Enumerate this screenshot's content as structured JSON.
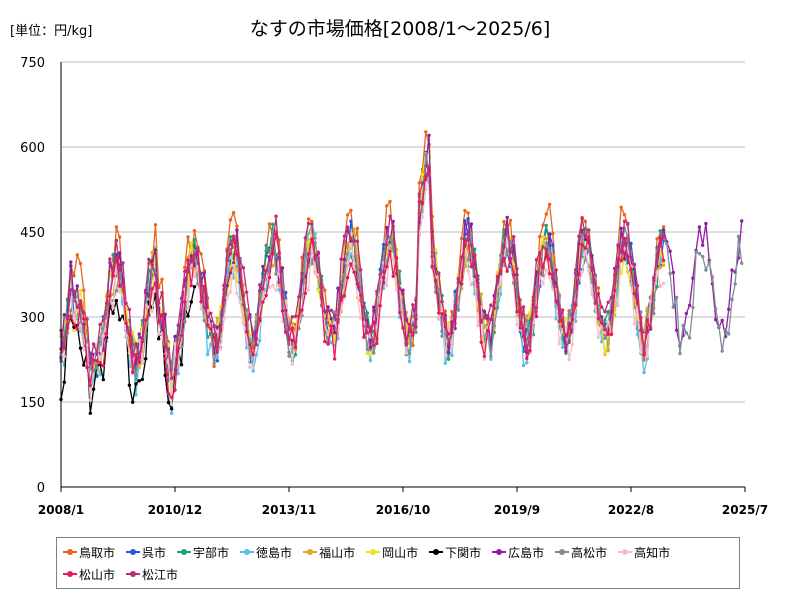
{
  "chart_data": {
    "type": "line",
    "title": "なすの市場価格[2008/1～2025/6]",
    "unit_label": "[単位：円/kg]",
    "ylim": [
      0,
      750
    ],
    "y_ticks": [
      0,
      150,
      300,
      450,
      600,
      750
    ],
    "x_range": [
      "2008/1",
      "2025/7"
    ],
    "x_ticks": [
      "2008/1",
      "2010/12",
      "2013/11",
      "2016/10",
      "2019/9",
      "2022/8",
      "2025/7"
    ],
    "grid": "horizontal",
    "legend_position": "bottom",
    "series": [
      {
        "name": "鳥取市",
        "color": "#e8651b",
        "end": "2023/6",
        "amp": 105,
        "base": 320,
        "lvl": 45,
        "sd": 3
      },
      {
        "name": "呉市",
        "color": "#1f5bd8",
        "end": "2023/6",
        "amp": 85,
        "base": 305,
        "lvl": 18,
        "sd": 7
      },
      {
        "name": "宇部市",
        "color": "#1ea36f",
        "end": "2023/6",
        "amp": 85,
        "base": 302,
        "lvl": 16,
        "sd": 11
      },
      {
        "name": "徳島市",
        "color": "#5bbde8",
        "end": "2023/6",
        "amp": 92,
        "base": 292,
        "lvl": 0,
        "sd": 13
      },
      {
        "name": "福山市",
        "color": "#e8a51b",
        "end": "2023/6",
        "amp": 82,
        "base": 304,
        "lvl": 14,
        "sd": 17
      },
      {
        "name": "岡山市",
        "color": "#f0e020",
        "end": "2023/6",
        "amp": 82,
        "base": 302,
        "lvl": 10,
        "sd": 19
      },
      {
        "name": "下関市",
        "color": "#000000",
        "end": "2011/6",
        "amp": 85,
        "base": 265,
        "lvl": -25,
        "sd": 23
      },
      {
        "name": "広島市",
        "color": "#8e1ea0",
        "end": "2025/6",
        "amp": 85,
        "base": 312,
        "lvl": 20,
        "sd": 29
      },
      {
        "name": "高松市",
        "color": "#7f8c99",
        "end": "2025/6",
        "amp": 80,
        "base": 298,
        "lvl": 4,
        "sd": 31
      },
      {
        "name": "高知市",
        "color": "#f2c0c8",
        "end": "2023/6",
        "amp": 70,
        "base": 285,
        "lvl": -5,
        "sd": 37
      },
      {
        "name": "松山市",
        "color": "#e8195a",
        "end": "2023/6",
        "amp": 84,
        "base": 294,
        "lvl": 0,
        "sd": 41
      },
      {
        "name": "松江市",
        "color": "#b8307a",
        "end": "2023/6",
        "amp": 88,
        "base": 318,
        "lvl": 30,
        "sd": 43
      }
    ]
  }
}
